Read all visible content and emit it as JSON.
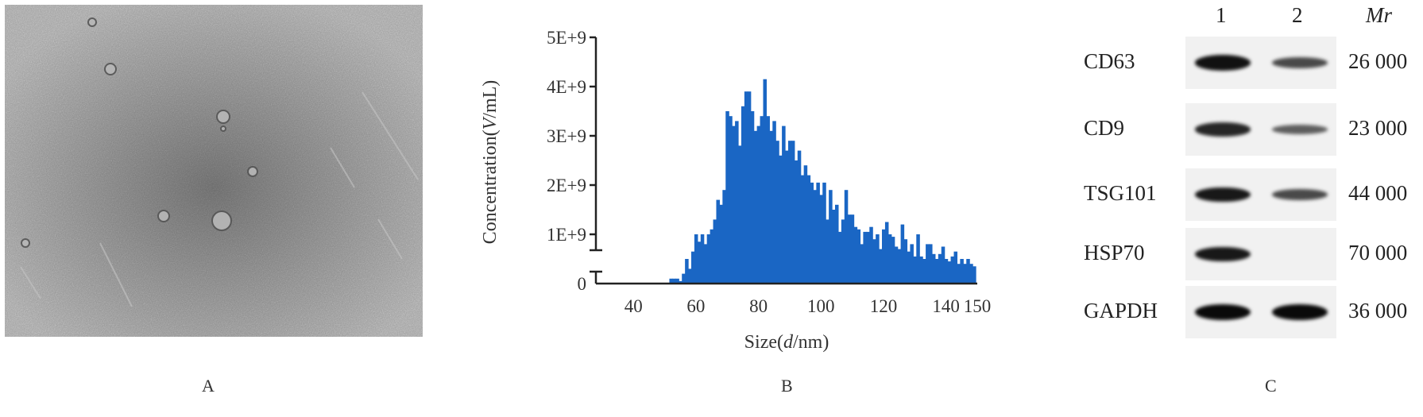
{
  "panels": {
    "a": "A",
    "b": "B",
    "c": "C"
  },
  "chart_data": {
    "type": "bar",
    "xlabel_prefix": "Size(",
    "xlabel_var": "d",
    "xlabel_suffix": "/nm)",
    "ylabel_prefix": "Concentration(",
    "ylabel_var": "V",
    "ylabel_suffix": "/mL)",
    "xlim": [
      28,
      150
    ],
    "ylim": [
      0,
      5000000000
    ],
    "xticks": [
      40,
      60,
      80,
      100,
      120,
      140,
      150
    ],
    "yticks": [
      {
        "value": 0,
        "label": "0"
      },
      {
        "value": 1000000000,
        "label": "1E+9"
      },
      {
        "value": 2000000000,
        "label": "2E+9"
      },
      {
        "value": 3000000000,
        "label": "3E+9"
      },
      {
        "value": 4000000000,
        "label": "4E+9"
      },
      {
        "value": 5000000000,
        "label": "5E+9"
      }
    ],
    "bar_width": 1,
    "color": "#1a66c4",
    "x": [
      52,
      53,
      54,
      55,
      56,
      57,
      58,
      59,
      60,
      61,
      62,
      63,
      64,
      65,
      66,
      67,
      68,
      69,
      70,
      71,
      72,
      73,
      74,
      75,
      76,
      77,
      78,
      79,
      80,
      81,
      82,
      83,
      84,
      85,
      86,
      87,
      88,
      89,
      90,
      91,
      92,
      93,
      94,
      95,
      96,
      97,
      98,
      99,
      100,
      101,
      102,
      103,
      104,
      105,
      106,
      107,
      108,
      109,
      110,
      111,
      112,
      113,
      114,
      115,
      116,
      117,
      118,
      119,
      120,
      121,
      122,
      123,
      124,
      125,
      126,
      127,
      128,
      129,
      130,
      131,
      132,
      133,
      134,
      135,
      136,
      137,
      138,
      139,
      140,
      141,
      142,
      143,
      144,
      145,
      146,
      147,
      148,
      149
    ],
    "values": [
      0.1,
      0.1,
      0.1,
      0.05,
      0.2,
      0.5,
      0.3,
      0.65,
      1.0,
      0.85,
      1.0,
      0.8,
      1.0,
      1.1,
      1.3,
      1.7,
      1.6,
      1.9,
      3.5,
      3.4,
      3.2,
      3.3,
      2.8,
      3.6,
      3.9,
      3.9,
      3.5,
      3.1,
      3.2,
      3.4,
      4.15,
      3.4,
      3.1,
      3.3,
      2.9,
      2.6,
      3.2,
      2.7,
      2.9,
      2.9,
      2.5,
      2.7,
      2.2,
      2.4,
      2.2,
      2.05,
      1.9,
      2.05,
      1.8,
      2.05,
      1.3,
      1.9,
      1.5,
      1.6,
      1.05,
      1.3,
      1.9,
      1.4,
      1.4,
      1.15,
      1.1,
      0.8,
      1.05,
      1.05,
      1.15,
      0.9,
      1.0,
      0.7,
      1.1,
      1.25,
      1.0,
      0.95,
      0.75,
      0.7,
      1.2,
      0.9,
      0.65,
      0.8,
      0.55,
      1.0,
      0.55,
      0.5,
      0.8,
      0.8,
      0.6,
      0.5,
      0.6,
      0.75,
      0.5,
      0.45,
      0.55,
      0.65,
      0.4,
      0.5,
      0.4,
      0.5,
      0.4,
      0.35
    ]
  },
  "blot": {
    "lanes": [
      "1",
      "2"
    ],
    "mr_header": "Mr",
    "rows": [
      {
        "protein": "CD63",
        "mr": "26 000",
        "lane1": 0.95,
        "lane2": 0.55
      },
      {
        "protein": "CD9",
        "mr": "23 000",
        "lane1": 0.8,
        "lane2": 0.4
      },
      {
        "protein": "TSG101",
        "mr": "44 000",
        "lane1": 0.9,
        "lane2": 0.55
      },
      {
        "protein": "HSP70",
        "mr": "70 000",
        "lane1": 0.9,
        "lane2": 0.0
      },
      {
        "protein": "GAPDH",
        "mr": "36 000",
        "lane1": 1.0,
        "lane2": 1.0
      }
    ]
  }
}
